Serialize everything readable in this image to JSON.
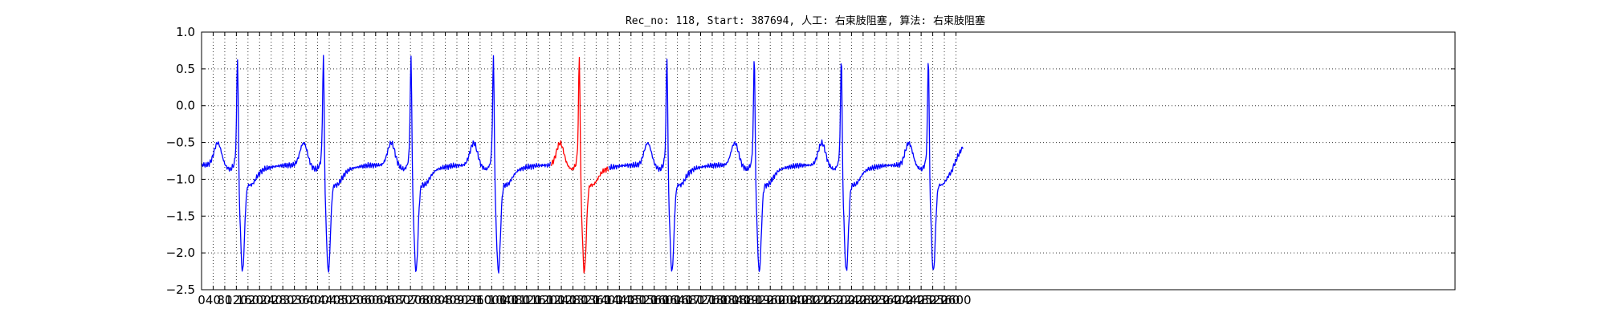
{
  "chart_data": {
    "type": "line",
    "title": "Rec_no: 118, Start: 387694, 人工: 右束肢阻塞, 算法: 右束肢阻塞",
    "xlabel": "",
    "ylabel": "",
    "xlim": [
      0,
      4320
    ],
    "ylim": [
      -2.5,
      1.0
    ],
    "grid": true,
    "y_ticks": [
      1.0,
      0.5,
      0.0,
      -0.5,
      -1.0,
      -1.5,
      -2.0,
      -2.5
    ],
    "y_tick_labels": [
      "1.0",
      "0.5",
      "0.0",
      "−0.5",
      "−1.0",
      "−1.5",
      "−2.0",
      "−2.5"
    ],
    "x_ticks": [
      0,
      40,
      80,
      120,
      160,
      200,
      240,
      280,
      320,
      360,
      400,
      440,
      480,
      520,
      560,
      600,
      640,
      680,
      720,
      760,
      800,
      840,
      880,
      920,
      960,
      1000,
      1040,
      1080,
      1120,
      1160,
      1200,
      1240,
      1280,
      1320,
      1360,
      1400,
      1440,
      1480,
      1520,
      1560,
      1600,
      1640,
      1680,
      1720,
      1760,
      1800,
      1840,
      1880,
      1920,
      1960,
      2000,
      2040,
      2080,
      2120,
      2160,
      2200,
      2240,
      2280,
      2320,
      2360,
      2400,
      2440,
      2480,
      2520,
      2560,
      2600
    ],
    "x_tick_labels": [
      "0",
      "40",
      "80",
      "120",
      "160",
      "200",
      "240",
      "280",
      "320",
      "360",
      "400",
      "440",
      "480",
      "520",
      "560",
      "600",
      "640",
      "680",
      "720",
      "760",
      "800",
      "840",
      "880",
      "920",
      "960",
      "1000",
      "1040",
      "1080",
      "1120",
      "1160",
      "1200",
      "1240",
      "1280",
      "1320",
      "1360",
      "1400",
      "1440",
      "1480",
      "1520",
      "1560",
      "1600",
      "1640",
      "1680",
      "1720",
      "1760",
      "1800",
      "1840",
      "1880",
      "1920",
      "1960",
      "2000",
      "2040",
      "2080",
      "2120",
      "2160",
      "2200",
      "2240",
      "2280",
      "2320",
      "2360",
      "2400",
      "2440",
      "2480",
      "2520",
      "2560",
      "2600"
    ],
    "beats": [
      {
        "r": 124,
        "pre_t": 56,
        "c": "#0000ff"
      },
      {
        "r": 420,
        "pre_t": 352,
        "c": "#0000ff"
      },
      {
        "r": 722,
        "pre_t": 654,
        "c": "#0000ff"
      },
      {
        "r": 1006,
        "pre_t": 938,
        "c": "#0000ff"
      },
      {
        "r": 1302,
        "pre_t": 1236,
        "c": "#ff0000"
      },
      {
        "r": 1604,
        "pre_t": 1538,
        "c": "#0000ff"
      },
      {
        "r": 1905,
        "pre_t": 1838,
        "c": "#0000ff"
      },
      {
        "r": 2205,
        "pre_t": 2138,
        "c": "#0000ff"
      },
      {
        "r": 2505,
        "pre_t": 2438,
        "c": "#0000ff"
      }
    ],
    "red_range": [
      1203,
      1403
    ],
    "x_end": 2625,
    "tail_end": -0.55,
    "series": [
      {
        "color": "#0000ff",
        "points": [
          [
            0,
            -0.7
          ],
          [
            30,
            -0.68
          ],
          [
            56,
            -0.47
          ],
          [
            80,
            -0.75
          ],
          [
            100,
            -0.82
          ],
          [
            113,
            0.2
          ],
          [
            124,
            0.78
          ],
          [
            134,
            -1.9
          ],
          [
            148,
            -2.15
          ],
          [
            166,
            -0.9
          ],
          [
            196,
            -1.2
          ],
          [
            230,
            -0.72
          ],
          [
            300,
            -0.76
          ],
          [
            352,
            -0.5
          ],
          [
            392,
            -0.82
          ],
          [
            409,
            0.22
          ],
          [
            420,
            0.75
          ],
          [
            430,
            -1.95
          ],
          [
            444,
            -2.15
          ],
          [
            462,
            -0.95
          ],
          [
            492,
            -1.25
          ],
          [
            526,
            -0.75
          ],
          [
            596,
            -0.8
          ],
          [
            654,
            -0.5
          ],
          [
            694,
            -0.86
          ],
          [
            711,
            0.2
          ],
          [
            722,
            0.66
          ],
          [
            732,
            -1.95
          ],
          [
            746,
            -2.15
          ],
          [
            764,
            -0.98
          ],
          [
            794,
            -1.25
          ],
          [
            828,
            -0.74
          ],
          [
            898,
            -0.8
          ],
          [
            938,
            -0.55
          ],
          [
            978,
            -0.9
          ],
          [
            995,
            0.18
          ],
          [
            1006,
            0.64
          ],
          [
            1016,
            -1.95
          ],
          [
            1030,
            -2.25
          ],
          [
            1048,
            -1.0
          ],
          [
            1078,
            -1.3
          ],
          [
            1112,
            -0.82
          ],
          [
            1203,
            -0.85
          ]
        ]
      },
      {
        "color": "#ff0000",
        "points": [
          [
            1203,
            -0.85
          ],
          [
            1236,
            -0.55
          ],
          [
            1276,
            -0.9
          ],
          [
            1291,
            0.2
          ],
          [
            1302,
            0.68
          ],
          [
            1312,
            -1.95
          ],
          [
            1326,
            -2.2
          ],
          [
            1344,
            -1.0
          ],
          [
            1374,
            -1.25
          ],
          [
            1403,
            -0.8
          ]
        ]
      },
      {
        "color": "#0000ff",
        "points": [
          [
            1403,
            -0.8
          ],
          [
            1498,
            -0.82
          ],
          [
            1538,
            -0.5
          ],
          [
            1578,
            -0.9
          ],
          [
            1593,
            0.2
          ],
          [
            1604,
            0.74
          ],
          [
            1614,
            -1.95
          ],
          [
            1628,
            -2.25
          ],
          [
            1646,
            -1.0
          ],
          [
            1676,
            -1.3
          ],
          [
            1710,
            -0.82
          ],
          [
            1798,
            -0.85
          ],
          [
            1838,
            -0.55
          ],
          [
            1878,
            -0.9
          ],
          [
            1894,
            0.2
          ],
          [
            1905,
            0.62
          ],
          [
            1915,
            -1.95
          ],
          [
            1929,
            -2.2
          ],
          [
            1947,
            -0.98
          ],
          [
            1977,
            -1.32
          ],
          [
            2011,
            -0.88
          ],
          [
            2098,
            -0.9
          ],
          [
            2138,
            -0.65
          ],
          [
            2178,
            -1.0
          ],
          [
            2194,
            0.2
          ],
          [
            2205,
            0.58
          ],
          [
            2215,
            -2.0
          ],
          [
            2229,
            -2.3
          ],
          [
            2247,
            -1.05
          ],
          [
            2277,
            -1.38
          ],
          [
            2311,
            -0.88
          ],
          [
            2398,
            -0.92
          ],
          [
            2438,
            -0.65
          ],
          [
            2478,
            -0.9
          ],
          [
            2494,
            0.2
          ],
          [
            2505,
            0.58
          ],
          [
            2515,
            -1.95
          ],
          [
            2529,
            -2.15
          ],
          [
            2547,
            -0.95
          ],
          [
            2577,
            -1.25
          ],
          [
            2604,
            -0.58
          ],
          [
            2625,
            -0.55
          ]
        ]
      }
    ]
  }
}
